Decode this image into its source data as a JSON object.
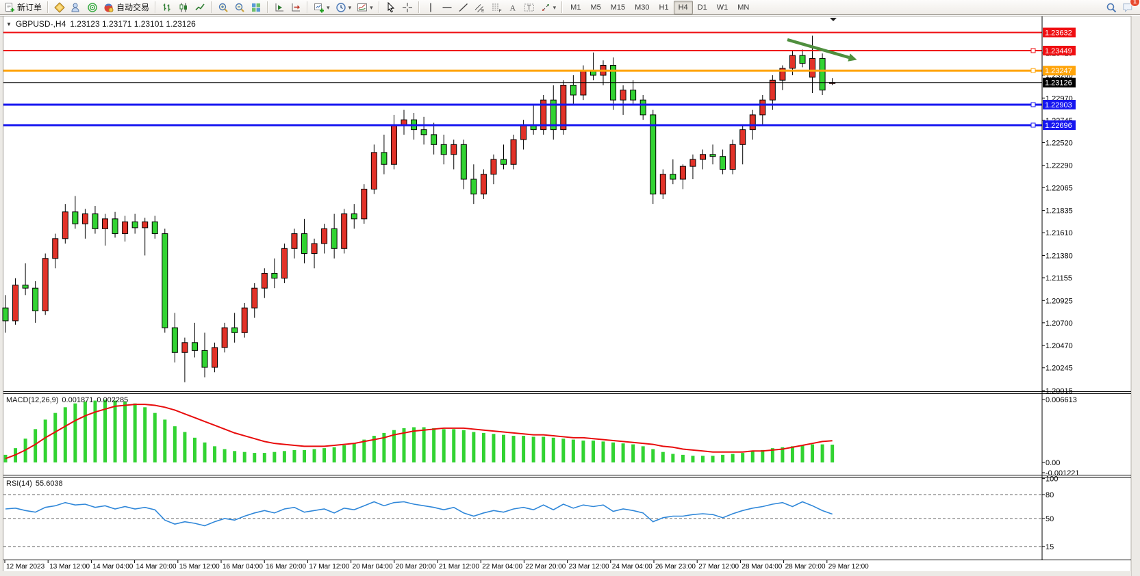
{
  "toolbar": {
    "groups": [
      {
        "items": [
          {
            "name": "new-order-button",
            "icon": "new-order",
            "label": "新订单"
          }
        ]
      },
      {
        "items": [
          {
            "name": "profile-button",
            "icon": "profile"
          },
          {
            "name": "market-watch-button",
            "icon": "market-watch"
          },
          {
            "name": "signals-button",
            "icon": "signals"
          },
          {
            "name": "autotrading-button",
            "icon": "autotrading",
            "label": "自动交易"
          }
        ]
      },
      {
        "items": [
          {
            "name": "bar-chart-button",
            "icon": "bars"
          },
          {
            "name": "candlestick-chart-button",
            "icon": "candles"
          },
          {
            "name": "line-chart-button",
            "icon": "line"
          }
        ]
      },
      {
        "items": [
          {
            "name": "zoom-in-button",
            "icon": "zoom-in"
          },
          {
            "name": "zoom-out-button",
            "icon": "zoom-out"
          },
          {
            "name": "tile-windows-button",
            "icon": "tiles"
          }
        ]
      },
      {
        "items": [
          {
            "name": "auto-scroll-button",
            "icon": "autoscroll"
          },
          {
            "name": "chart-shift-button",
            "icon": "chartshift"
          }
        ]
      },
      {
        "items": [
          {
            "name": "new-chart-button",
            "icon": "new-chart",
            "caret": true
          },
          {
            "name": "period-button",
            "icon": "clock",
            "caret": true
          },
          {
            "name": "template-button",
            "icon": "template",
            "caret": true
          }
        ]
      },
      {
        "items": [
          {
            "name": "cursor-button",
            "icon": "cursor"
          },
          {
            "name": "crosshair-button",
            "icon": "crosshair"
          }
        ]
      },
      {
        "items": [
          {
            "name": "vertical-line-button",
            "icon": "vline"
          },
          {
            "name": "horizontal-line-button",
            "icon": "hline"
          },
          {
            "name": "trendline-button",
            "icon": "trendline"
          },
          {
            "name": "equidistant-channel-button",
            "icon": "channel"
          },
          {
            "name": "fibonacci-button",
            "icon": "fibo"
          },
          {
            "name": "text-button",
            "icon": "text"
          },
          {
            "name": "text-label-button",
            "icon": "label"
          },
          {
            "name": "arrows-button",
            "icon": "arrows",
            "caret": true
          }
        ]
      }
    ],
    "timeframes": [
      "M1",
      "M5",
      "M15",
      "M30",
      "H1",
      "H4",
      "D1",
      "W1",
      "MN"
    ],
    "active_timeframe": "H4",
    "right_items": [
      {
        "name": "search-button",
        "icon": "search"
      },
      {
        "name": "chat-button",
        "icon": "chat",
        "badge": "1"
      }
    ]
  },
  "chart": {
    "title": {
      "symbol_period": "GBPUSD-,H4",
      "quote": "1.23123 1.23171 1.23101 1.23126"
    }
  },
  "chart_data": {
    "type": "candlestick",
    "symbol": "GBPUSD",
    "timeframe": "H4",
    "up_color": "#e23228",
    "down_color": "#32d332",
    "price_axis_ticks": [
      "1.23425",
      "1.23200",
      "1.22970",
      "1.22745",
      "1.22520",
      "1.22290",
      "1.22065",
      "1.21835",
      "1.21610",
      "1.21380",
      "1.21155",
      "1.20925",
      "1.20700",
      "1.20470",
      "1.20245",
      "1.20015"
    ],
    "time_axis_labels": [
      "12 Mar 2023",
      "13 Mar 12:00",
      "14 Mar 04:00",
      "14 Mar 20:00",
      "15 Mar 12:00",
      "16 Mar 04:00",
      "16 Mar 20:00",
      "17 Mar 12:00",
      "20 Mar 04:00",
      "20 Mar 20:00",
      "21 Mar 12:00",
      "22 Mar 04:00",
      "22 Mar 20:00",
      "23 Mar 12:00",
      "24 Mar 04:00",
      "26 Mar 23:00",
      "27 Mar 12:00",
      "28 Mar 04:00",
      "28 Mar 20:00",
      "29 Mar 12:00"
    ],
    "hlines": [
      {
        "price": 1.23632,
        "label": "1.23632",
        "color": "#ef0e11",
        "width": 2,
        "handle": false
      },
      {
        "price": 1.23449,
        "label": "1.23449",
        "color": "#ef0e11",
        "width": 2,
        "handle": true
      },
      {
        "price": 1.23247,
        "label": "1.23247",
        "color": "#ffa40a",
        "width": 3,
        "handle": true
      },
      {
        "price": 1.22903,
        "label": "1.22903",
        "color": "#1616f0",
        "width": 3,
        "handle": true
      },
      {
        "price": 1.22696,
        "label": "1.22696",
        "color": "#1616f0",
        "width": 3,
        "handle": true
      }
    ],
    "current_price": {
      "value": 1.23126,
      "label": "1.23126",
      "tag_color": "#000000"
    },
    "annotation_arrow": {
      "from": [
        1150,
        58
      ],
      "to": [
        1240,
        84
      ],
      "color": "#4f8f3e"
    },
    "candles": [
      [
        1.2085,
        1.2098,
        1.206,
        1.2072
      ],
      [
        1.2072,
        1.2115,
        1.2068,
        1.2108
      ],
      [
        1.2108,
        1.213,
        1.2098,
        1.2105
      ],
      [
        1.2105,
        1.2112,
        1.207,
        1.2082
      ],
      [
        1.2082,
        1.214,
        1.2078,
        1.2135
      ],
      [
        1.2135,
        1.216,
        1.2125,
        1.2155
      ],
      [
        1.2155,
        1.219,
        1.215,
        1.2182
      ],
      [
        1.2182,
        1.2198,
        1.2165,
        1.217
      ],
      [
        1.217,
        1.2185,
        1.2155,
        1.218
      ],
      [
        1.218,
        1.2188,
        1.216,
        1.2165
      ],
      [
        1.2165,
        1.218,
        1.2148,
        1.2175
      ],
      [
        1.2175,
        1.2182,
        1.2156,
        1.216
      ],
      [
        1.216,
        1.2178,
        1.2152,
        1.2172
      ],
      [
        1.2172,
        1.218,
        1.216,
        1.2166
      ],
      [
        1.2166,
        1.2176,
        1.2138,
        1.2172
      ],
      [
        1.2172,
        1.2178,
        1.2155,
        1.216
      ],
      [
        1.216,
        1.2165,
        1.206,
        1.2065
      ],
      [
        1.2065,
        1.208,
        1.203,
        1.204
      ],
      [
        1.204,
        1.2055,
        1.201,
        1.205
      ],
      [
        1.205,
        1.207,
        1.2035,
        1.2042
      ],
      [
        1.2042,
        1.206,
        1.2015,
        1.2025
      ],
      [
        1.2025,
        1.205,
        1.202,
        1.2045
      ],
      [
        1.2045,
        1.207,
        1.204,
        1.2065
      ],
      [
        1.2065,
        1.208,
        1.205,
        1.206
      ],
      [
        1.206,
        1.209,
        1.2055,
        1.2085
      ],
      [
        1.2085,
        1.211,
        1.2075,
        1.2105
      ],
      [
        1.2105,
        1.2125,
        1.2095,
        1.212
      ],
      [
        1.212,
        1.2135,
        1.2105,
        1.2115
      ],
      [
        1.2115,
        1.215,
        1.211,
        1.2145
      ],
      [
        1.2145,
        1.2165,
        1.2135,
        1.216
      ],
      [
        1.216,
        1.2175,
        1.213,
        1.214
      ],
      [
        1.214,
        1.2155,
        1.2125,
        1.215
      ],
      [
        1.215,
        1.217,
        1.214,
        1.2165
      ],
      [
        1.2165,
        1.218,
        1.2135,
        1.2145
      ],
      [
        1.2145,
        1.2185,
        1.214,
        1.218
      ],
      [
        1.218,
        1.219,
        1.2165,
        1.2175
      ],
      [
        1.2175,
        1.221,
        1.217,
        1.2205
      ],
      [
        1.2205,
        1.225,
        1.22,
        1.2242
      ],
      [
        1.2242,
        1.226,
        1.222,
        1.223
      ],
      [
        1.223,
        1.228,
        1.2225,
        1.227
      ],
      [
        1.227,
        1.2285,
        1.226,
        1.2275
      ],
      [
        1.2275,
        1.2282,
        1.2255,
        1.2265
      ],
      [
        1.2265,
        1.2278,
        1.225,
        1.226
      ],
      [
        1.226,
        1.2272,
        1.224,
        1.225
      ],
      [
        1.225,
        1.226,
        1.223,
        1.224
      ],
      [
        1.224,
        1.2255,
        1.2225,
        1.225
      ],
      [
        1.225,
        1.2255,
        1.2205,
        1.2215
      ],
      [
        1.2215,
        1.223,
        1.219,
        1.22
      ],
      [
        1.22,
        1.2225,
        1.2195,
        1.222
      ],
      [
        1.222,
        1.224,
        1.221,
        1.2235
      ],
      [
        1.2235,
        1.225,
        1.2225,
        1.223
      ],
      [
        1.223,
        1.226,
        1.2225,
        1.2255
      ],
      [
        1.2255,
        1.2275,
        1.2245,
        1.227
      ],
      [
        1.227,
        1.229,
        1.226,
        1.2265
      ],
      [
        1.2265,
        1.23,
        1.226,
        1.2295
      ],
      [
        1.2295,
        1.231,
        1.2255,
        1.2265
      ],
      [
        1.2265,
        1.2315,
        1.226,
        1.231
      ],
      [
        1.231,
        1.232,
        1.229,
        1.23
      ],
      [
        1.23,
        1.233,
        1.2295,
        1.2325
      ],
      [
        1.2325,
        1.2343,
        1.2315,
        1.232
      ],
      [
        1.232,
        1.2335,
        1.231,
        1.233
      ],
      [
        1.233,
        1.2338,
        1.2285,
        1.2295
      ],
      [
        1.2295,
        1.231,
        1.228,
        1.2305
      ],
      [
        1.2305,
        1.2315,
        1.229,
        1.2295
      ],
      [
        1.2295,
        1.23,
        1.2275,
        1.228
      ],
      [
        1.228,
        1.2285,
        1.219,
        1.22
      ],
      [
        1.22,
        1.2225,
        1.2195,
        1.222
      ],
      [
        1.222,
        1.2235,
        1.221,
        1.2215
      ],
      [
        1.2215,
        1.223,
        1.2205,
        1.2228
      ],
      [
        1.2228,
        1.224,
        1.2215,
        1.2235
      ],
      [
        1.2235,
        1.2245,
        1.2225,
        1.224
      ],
      [
        1.224,
        1.225,
        1.223,
        1.2238
      ],
      [
        1.2238,
        1.2245,
        1.222,
        1.2225
      ],
      [
        1.2225,
        1.2255,
        1.222,
        1.225
      ],
      [
        1.225,
        1.227,
        1.223,
        1.2265
      ],
      [
        1.2265,
        1.2285,
        1.2255,
        1.228
      ],
      [
        1.228,
        1.23,
        1.227,
        1.2295
      ],
      [
        1.2295,
        1.232,
        1.2285,
        1.2315
      ],
      [
        1.2315,
        1.233,
        1.2305,
        1.2327
      ],
      [
        1.2327,
        1.2345,
        1.232,
        1.234
      ],
      [
        1.234,
        1.2346,
        1.2328,
        1.2332
      ],
      [
        1.2318,
        1.236,
        1.2302,
        1.2337
      ],
      [
        1.2337,
        1.2342,
        1.23,
        1.2305
      ],
      [
        1.23123,
        1.23171,
        1.23101,
        1.23126
      ]
    ],
    "macd": {
      "label": "MACD(12,26,9)",
      "value_main": "0.001871",
      "value_signal": "0.002285",
      "axis_ticks": [
        "0.006613",
        "0.00",
        "-0.001221"
      ],
      "axis_max": 0.006613,
      "axis_min": -0.001221,
      "histogram_color": "#32d332",
      "signal_color": "#e80c0c",
      "histogram": [
        0.0008,
        0.0015,
        0.0025,
        0.0035,
        0.0045,
        0.0052,
        0.0058,
        0.0062,
        0.0064,
        0.0065,
        0.0066,
        0.0065,
        0.0064,
        0.0062,
        0.0058,
        0.0052,
        0.0045,
        0.0038,
        0.0032,
        0.0026,
        0.0021,
        0.0017,
        0.0014,
        0.0012,
        0.0011,
        0.001,
        0.001,
        0.0011,
        0.0012,
        0.0013,
        0.0013,
        0.0014,
        0.0015,
        0.0016,
        0.0018,
        0.002,
        0.0024,
        0.0028,
        0.0031,
        0.0034,
        0.0036,
        0.0037,
        0.0037,
        0.0036,
        0.0035,
        0.0035,
        0.0034,
        0.0032,
        0.0031,
        0.003,
        0.0029,
        0.0028,
        0.0028,
        0.0027,
        0.0027,
        0.0026,
        0.0025,
        0.0024,
        0.0023,
        0.0023,
        0.0022,
        0.0021,
        0.002,
        0.0019,
        0.0017,
        0.0014,
        0.0011,
        0.0009,
        0.0008,
        0.0007,
        0.0007,
        0.0007,
        0.0008,
        0.0009,
        0.001,
        0.0012,
        0.0013,
        0.0015,
        0.0016,
        0.0017,
        0.0018,
        0.0019,
        0.0019,
        0.001871
      ],
      "signal": [
        0.0004,
        0.0008,
        0.0013,
        0.0019,
        0.0026,
        0.0032,
        0.0038,
        0.0044,
        0.0049,
        0.0053,
        0.0056,
        0.0059,
        0.006,
        0.0061,
        0.0061,
        0.006,
        0.0058,
        0.0055,
        0.0051,
        0.0047,
        0.0043,
        0.0039,
        0.0035,
        0.0031,
        0.0028,
        0.0025,
        0.0022,
        0.002,
        0.0019,
        0.0018,
        0.0017,
        0.0017,
        0.0017,
        0.0018,
        0.0019,
        0.002,
        0.0022,
        0.0024,
        0.0026,
        0.0029,
        0.0031,
        0.0033,
        0.0034,
        0.0035,
        0.0036,
        0.0036,
        0.0036,
        0.0035,
        0.0034,
        0.0033,
        0.0032,
        0.0031,
        0.003,
        0.0029,
        0.0029,
        0.0028,
        0.0027,
        0.0026,
        0.0026,
        0.0025,
        0.0024,
        0.0023,
        0.0022,
        0.0021,
        0.002,
        0.0019,
        0.0017,
        0.0016,
        0.0014,
        0.0013,
        0.0012,
        0.0011,
        0.0011,
        0.0011,
        0.0011,
        0.0012,
        0.0012,
        0.0013,
        0.0014,
        0.0016,
        0.0018,
        0.002,
        0.0022,
        0.002285
      ]
    },
    "rsi": {
      "label": "RSI(14)",
      "value": "55.6038",
      "line_color": "#2f87d9",
      "levels": [
        100,
        80,
        50,
        15
      ],
      "dashed_levels": [
        80,
        50,
        15
      ],
      "series": [
        62,
        63,
        60,
        58,
        64,
        66,
        70,
        67,
        68,
        64,
        66,
        62,
        65,
        62,
        64,
        61,
        48,
        43,
        46,
        44,
        41,
        46,
        50,
        48,
        53,
        57,
        60,
        57,
        62,
        64,
        58,
        60,
        62,
        57,
        63,
        61,
        66,
        71,
        66,
        70,
        71,
        68,
        66,
        64,
        61,
        64,
        57,
        53,
        57,
        60,
        58,
        62,
        64,
        61,
        67,
        61,
        68,
        63,
        67,
        65,
        67,
        59,
        62,
        60,
        57,
        46,
        51,
        53,
        53,
        55,
        56,
        55,
        51,
        56,
        60,
        63,
        65,
        68,
        70,
        65,
        71,
        66,
        60,
        55.6
      ]
    }
  }
}
